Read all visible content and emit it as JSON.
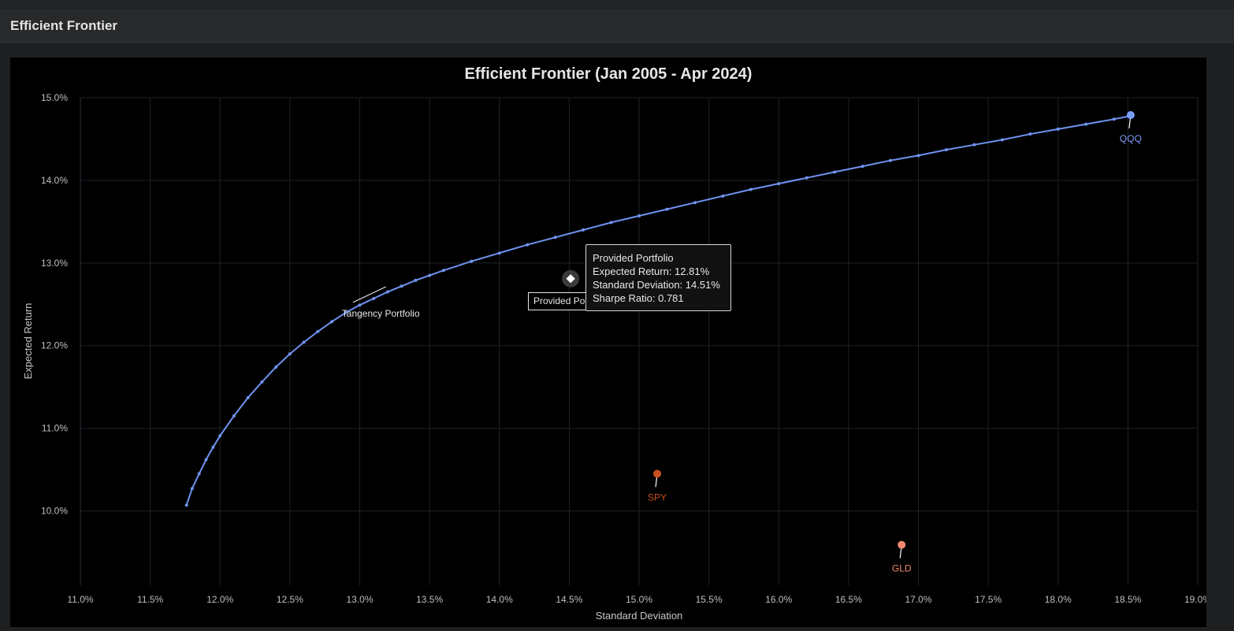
{
  "panel": {
    "title": "Efficient Frontier"
  },
  "tooltip": {
    "title": "Provided Portfolio",
    "expected_return": "Expected Return: 12.81%",
    "std_dev": "Standard Deviation: 14.51%",
    "sharpe": "Sharpe Ratio: 0.781"
  },
  "hover_label": "Provided Portfolio",
  "colors": {
    "frontier": "#6f93f0",
    "qqq": "#7b9ef5",
    "spy": "#c8501c",
    "gld": "#f3896f",
    "grid": "#1e2226",
    "background": "#000000"
  },
  "chart_data": {
    "type": "scatter",
    "title": "Efficient Frontier (Jan 2005 - Apr 2024)",
    "xlabel": "Standard Deviation",
    "ylabel": "Expected Return",
    "xlim": [
      11.0,
      19.0
    ],
    "ylim": [
      9.1,
      15.0
    ],
    "x_ticks": [
      11.0,
      11.5,
      12.0,
      12.5,
      13.0,
      13.5,
      14.0,
      14.5,
      15.0,
      15.5,
      16.0,
      16.5,
      17.0,
      17.5,
      18.0,
      18.5,
      19.0
    ],
    "x_tick_labels": [
      "11.0%",
      "11.5%",
      "12.0%",
      "12.5%",
      "13.0%",
      "13.5%",
      "14.0%",
      "14.5%",
      "15.0%",
      "15.5%",
      "16.0%",
      "16.5%",
      "17.0%",
      "17.5%",
      "18.0%",
      "18.5%",
      "19.0%"
    ],
    "y_ticks": [
      10.0,
      11.0,
      12.0,
      13.0,
      14.0,
      15.0
    ],
    "y_tick_labels": [
      "10.0%",
      "11.0%",
      "12.0%",
      "13.0%",
      "14.0%",
      "15.0%"
    ],
    "grid": true,
    "frontier": {
      "x": [
        11.76,
        11.8,
        11.85,
        11.9,
        11.95,
        12.0,
        12.1,
        12.2,
        12.3,
        12.4,
        12.5,
        12.6,
        12.7,
        12.8,
        12.9,
        13.0,
        13.1,
        13.2,
        13.3,
        13.4,
        13.5,
        13.6,
        13.8,
        14.0,
        14.2,
        14.4,
        14.6,
        14.8,
        15.0,
        15.2,
        15.4,
        15.6,
        15.8,
        16.0,
        16.2,
        16.4,
        16.6,
        16.8,
        17.0,
        17.2,
        17.4,
        17.6,
        17.8,
        18.0,
        18.2,
        18.4,
        18.52
      ],
      "y": [
        10.07,
        10.27,
        10.45,
        10.62,
        10.77,
        10.91,
        11.15,
        11.37,
        11.56,
        11.74,
        11.9,
        12.04,
        12.17,
        12.29,
        12.4,
        12.49,
        12.57,
        12.65,
        12.72,
        12.79,
        12.85,
        12.91,
        13.02,
        13.12,
        13.22,
        13.31,
        13.4,
        13.49,
        13.57,
        13.65,
        13.73,
        13.81,
        13.89,
        13.96,
        14.03,
        14.1,
        14.17,
        14.24,
        14.3,
        14.37,
        14.43,
        14.49,
        14.56,
        14.62,
        14.68,
        14.74,
        14.78
      ]
    },
    "assets": [
      {
        "name": "QQQ",
        "x": 18.52,
        "y": 14.79
      },
      {
        "name": "SPY",
        "x": 15.13,
        "y": 10.45
      },
      {
        "name": "GLD",
        "x": 16.88,
        "y": 9.59
      }
    ],
    "tangency": {
      "label": "Tangency Portfolio",
      "x": 13.12,
      "y": 12.57
    },
    "provided": {
      "name": "Provided Portfolio",
      "x": 14.51,
      "y": 12.81
    }
  }
}
